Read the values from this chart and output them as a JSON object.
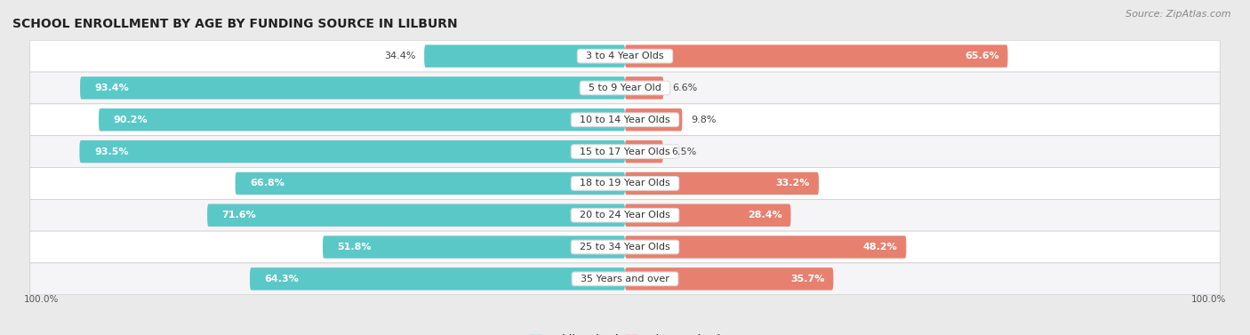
{
  "title": "SCHOOL ENROLLMENT BY AGE BY FUNDING SOURCE IN LILBURN",
  "source": "Source: ZipAtlas.com",
  "categories": [
    "3 to 4 Year Olds",
    "5 to 9 Year Old",
    "10 to 14 Year Olds",
    "15 to 17 Year Olds",
    "18 to 19 Year Olds",
    "20 to 24 Year Olds",
    "25 to 34 Year Olds",
    "35 Years and over"
  ],
  "public_values": [
    34.4,
    93.4,
    90.2,
    93.5,
    66.8,
    71.6,
    51.8,
    64.3
  ],
  "private_values": [
    65.6,
    6.6,
    9.8,
    6.5,
    33.2,
    28.4,
    48.2,
    35.7
  ],
  "public_color": "#5BC8C8",
  "private_color": "#E88070",
  "fig_bg_color": "#EAEAEA",
  "row_bg_even": "#F5F5F8",
  "row_bg_odd": "#FFFFFF",
  "title_fontsize": 10,
  "label_fontsize": 8,
  "tick_fontsize": 7.5,
  "source_fontsize": 8,
  "legend_fontsize": 8.5,
  "x_left_label": "100.0%",
  "x_right_label": "100.0%",
  "max_val": 100
}
